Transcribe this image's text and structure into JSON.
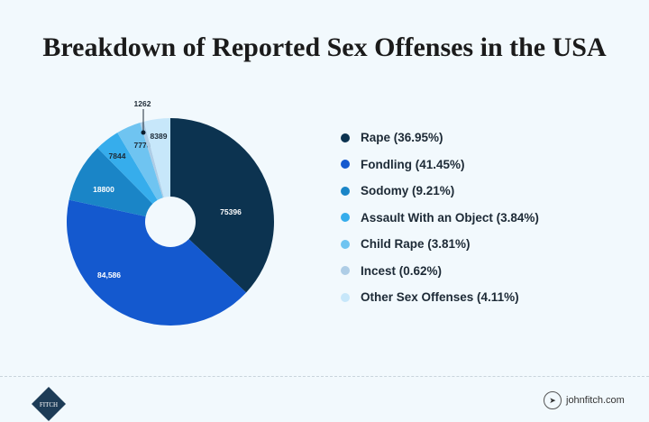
{
  "chart_data": {
    "type": "pie",
    "title": "Breakdown of Reported Sex Offenses in the USA",
    "donut": true,
    "start": "12 o'clock, clockwise",
    "legend_position": "right",
    "categories": [
      "Rape (36.95%)",
      "Fondling (41.45%)",
      "Sodomy (9.21%)",
      "Assault With an Object (3.84%)",
      "Child Rape (3.81%)",
      "Incest (0.62%)",
      "Other Sex Offenses (4.11%)"
    ],
    "percents": [
      36.95,
      41.45,
      9.21,
      3.84,
      3.81,
      0.62,
      4.11
    ],
    "values": [
      75396,
      84586,
      18800,
      7844,
      7778,
      1262,
      8389
    ],
    "data_labels": [
      "75396",
      "84,586",
      "18800",
      "7844",
      "7778",
      "1262",
      "8389"
    ],
    "colors": [
      "#0c3350",
      "#1459cf",
      "#1a85c7",
      "#36adec",
      "#6fc4f1",
      "#aecde6",
      "#c7e7fa"
    ]
  },
  "footer": {
    "logo_text": "FITCH",
    "website": "johnfitch.com"
  }
}
